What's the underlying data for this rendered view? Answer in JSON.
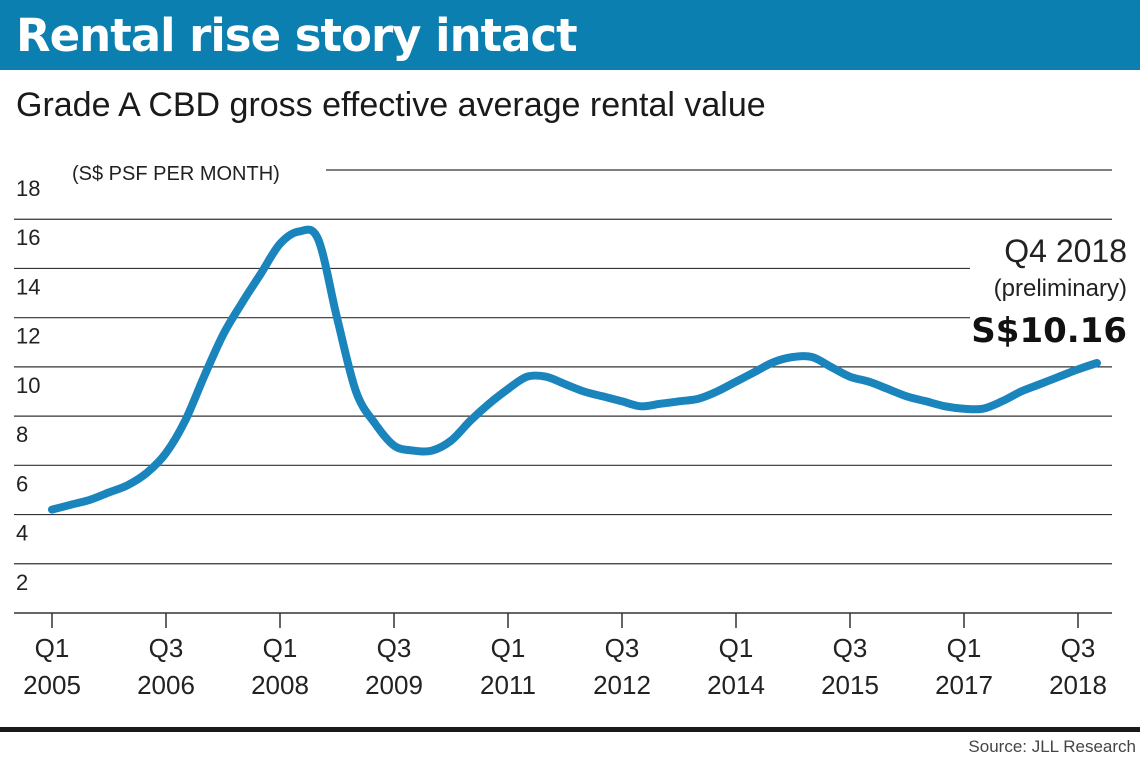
{
  "title": "Rental rise story intact",
  "subtitle": "Grade A CBD gross effective average rental value",
  "source": "Source: JLL Research",
  "colors": {
    "header_bg": "#0b7fb0",
    "line": "#1a84bd",
    "grid": "#333333"
  },
  "chart_data": {
    "type": "line",
    "ylabel": "(S$ PSF PER MONTH)",
    "ylim": [
      0,
      18
    ],
    "yticks": [
      2,
      4,
      6,
      8,
      10,
      12,
      14,
      16,
      18
    ],
    "xticks": [
      {
        "q": "Q1",
        "year": "2005",
        "t": 0
      },
      {
        "q": "Q3",
        "year": "2006",
        "t": 6
      },
      {
        "q": "Q1",
        "year": "2008",
        "t": 12
      },
      {
        "q": "Q3",
        "year": "2009",
        "t": 18
      },
      {
        "q": "Q1",
        "year": "2011",
        "t": 24
      },
      {
        "q": "Q3",
        "year": "2012",
        "t": 30
      },
      {
        "q": "Q1",
        "year": "2014",
        "t": 36
      },
      {
        "q": "Q3",
        "year": "2015",
        "t": 42
      },
      {
        "q": "Q1",
        "year": "2017",
        "t": 48
      },
      {
        "q": "Q3",
        "year": "2018",
        "t": 54
      }
    ],
    "series": [
      {
        "name": "Grade A CBD gross effective average rental value",
        "x": [
          "Q1 2005",
          "Q2 2005",
          "Q3 2005",
          "Q4 2005",
          "Q1 2006",
          "Q2 2006",
          "Q3 2006",
          "Q4 2006",
          "Q1 2007",
          "Q2 2007",
          "Q3 2007",
          "Q4 2007",
          "Q1 2008",
          "Q2 2008",
          "Q3 2008",
          "Q4 2008",
          "Q1 2009",
          "Q2 2009",
          "Q3 2009",
          "Q4 2009",
          "Q1 2010",
          "Q2 2010",
          "Q3 2010",
          "Q4 2010",
          "Q1 2011",
          "Q2 2011",
          "Q3 2011",
          "Q4 2011",
          "Q1 2012",
          "Q2 2012",
          "Q3 2012",
          "Q4 2012",
          "Q1 2013",
          "Q2 2013",
          "Q3 2013",
          "Q4 2013",
          "Q1 2014",
          "Q2 2014",
          "Q3 2014",
          "Q4 2014",
          "Q1 2015",
          "Q2 2015",
          "Q3 2015",
          "Q4 2015",
          "Q1 2016",
          "Q2 2016",
          "Q3 2016",
          "Q4 2016",
          "Q1 2017",
          "Q2 2017",
          "Q3 2017",
          "Q4 2017",
          "Q1 2018",
          "Q2 2018",
          "Q3 2018",
          "Q4 2018"
        ],
        "values": [
          4.2,
          4.4,
          4.6,
          4.9,
          5.2,
          5.7,
          6.5,
          7.8,
          9.6,
          11.3,
          12.6,
          13.8,
          15.0,
          15.5,
          15.2,
          12.0,
          9.0,
          7.7,
          6.8,
          6.6,
          6.6,
          7.0,
          7.8,
          8.5,
          9.1,
          9.6,
          9.6,
          9.3,
          9.0,
          8.8,
          8.6,
          8.4,
          8.5,
          8.6,
          8.7,
          9.0,
          9.4,
          9.8,
          10.2,
          10.4,
          10.4,
          10.0,
          9.6,
          9.4,
          9.1,
          8.8,
          8.6,
          8.4,
          8.3,
          8.3,
          8.6,
          9.0,
          9.3,
          9.6,
          9.9,
          10.16
        ]
      }
    ],
    "annotation": {
      "period": "Q4 2018",
      "note": "(preliminary)",
      "value_label": "S$10.16"
    }
  }
}
